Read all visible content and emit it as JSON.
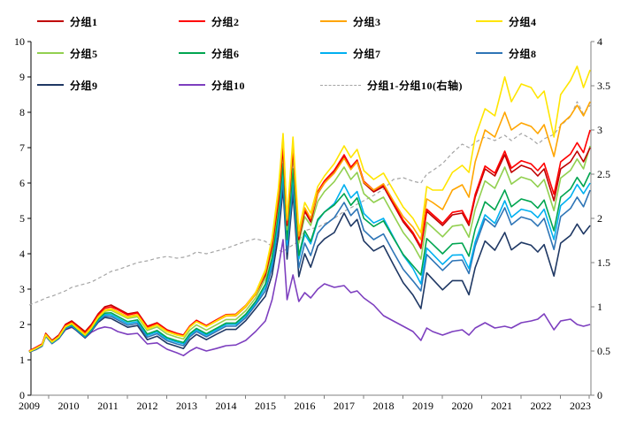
{
  "legend": {
    "items": [
      {
        "label": "分组1",
        "color": "#C00000",
        "dashed": false
      },
      {
        "label": "分组2",
        "color": "#FF0000",
        "dashed": false
      },
      {
        "label": "分组3",
        "color": "#FFA500",
        "dashed": false
      },
      {
        "label": "分组4",
        "color": "#FFE500",
        "dashed": false
      },
      {
        "label": "分组5",
        "color": "#92D050",
        "dashed": false
      },
      {
        "label": "分组6",
        "color": "#00A550",
        "dashed": false
      },
      {
        "label": "分组7",
        "color": "#00B0F0",
        "dashed": false
      },
      {
        "label": "分组8",
        "color": "#2E75B6",
        "dashed": false
      },
      {
        "label": "分组9",
        "color": "#1F3864",
        "dashed": false
      },
      {
        "label": "分组10",
        "color": "#7D3FBF",
        "dashed": false
      },
      {
        "label": "分组1-分组10(右轴)",
        "color": "#A5A5A5",
        "dashed": true
      }
    ]
  },
  "chart_data": {
    "type": "line",
    "title": "",
    "xlabel": "",
    "ylabel": "",
    "grid": false,
    "legend_position": "top",
    "left_axis": {
      "min": 0,
      "max": 10,
      "ticks": [
        0,
        1,
        2,
        3,
        4,
        5,
        6,
        7,
        8,
        9,
        10
      ]
    },
    "right_axis": {
      "min": 0,
      "max": 4,
      "ticks": [
        0,
        0.5,
        1,
        1.5,
        2,
        2.5,
        3,
        3.5,
        4
      ]
    },
    "x_axis": {
      "ticks": [
        2009,
        2010,
        2011,
        2012,
        2013,
        2014,
        2015,
        2016,
        2017,
        2018,
        2019,
        2020,
        2021,
        2022,
        2023
      ]
    },
    "x": [
      2009.0,
      2009.17,
      2009.33,
      2009.42,
      2009.58,
      2009.75,
      2009.92,
      2010.08,
      2010.25,
      2010.42,
      2010.58,
      2010.75,
      2010.92,
      2011.08,
      2011.25,
      2011.5,
      2011.75,
      2012.0,
      2012.25,
      2012.5,
      2012.75,
      2012.92,
      2013.08,
      2013.25,
      2013.5,
      2013.75,
      2014.0,
      2014.25,
      2014.5,
      2014.75,
      2015.0,
      2015.17,
      2015.33,
      2015.45,
      2015.55,
      2015.7,
      2015.85,
      2016.0,
      2016.15,
      2016.33,
      2016.5,
      2016.75,
      2017.0,
      2017.17,
      2017.33,
      2017.5,
      2017.75,
      2018.0,
      2018.25,
      2018.5,
      2018.75,
      2018.95,
      2019.1,
      2019.25,
      2019.5,
      2019.75,
      2020.0,
      2020.17,
      2020.33,
      2020.58,
      2020.83,
      2021.08,
      2021.25,
      2021.5,
      2021.75,
      2021.92,
      2022.08,
      2022.33,
      2022.5,
      2022.75,
      2022.92,
      2023.08,
      2023.25
    ],
    "series": [
      {
        "name": "分组1",
        "color": "#C00000",
        "axis": "left",
        "dashed": false,
        "values": [
          1.25,
          1.35,
          1.45,
          1.75,
          1.55,
          1.7,
          2.0,
          2.1,
          1.95,
          1.8,
          2.0,
          2.3,
          2.5,
          2.55,
          2.45,
          2.3,
          2.35,
          1.95,
          2.05,
          1.85,
          1.75,
          1.7,
          1.95,
          2.1,
          1.95,
          2.1,
          2.25,
          2.25,
          2.5,
          2.85,
          3.4,
          4.2,
          5.5,
          7.0,
          4.8,
          6.95,
          4.4,
          5.2,
          4.9,
          5.7,
          6.0,
          6.3,
          6.75,
          6.4,
          6.6,
          6.0,
          5.75,
          5.9,
          5.4,
          4.9,
          4.55,
          4.15,
          5.2,
          5.05,
          4.8,
          5.1,
          5.15,
          4.8,
          5.6,
          6.4,
          6.2,
          6.8,
          6.3,
          6.5,
          6.4,
          6.2,
          6.4,
          5.5,
          6.4,
          6.6,
          6.9,
          6.6,
          7.0
        ]
      },
      {
        "name": "分组2",
        "color": "#FF0000",
        "axis": "left",
        "dashed": false,
        "values": [
          1.25,
          1.35,
          1.45,
          1.73,
          1.53,
          1.68,
          1.98,
          2.07,
          1.92,
          1.77,
          1.97,
          2.27,
          2.46,
          2.5,
          2.42,
          2.27,
          2.33,
          1.93,
          2.04,
          1.84,
          1.75,
          1.7,
          1.96,
          2.12,
          1.97,
          2.13,
          2.28,
          2.29,
          2.54,
          2.9,
          3.46,
          4.27,
          5.58,
          7.1,
          4.87,
          7.03,
          4.46,
          5.26,
          4.96,
          5.76,
          6.06,
          6.36,
          6.8,
          6.45,
          6.65,
          6.05,
          5.8,
          5.95,
          5.45,
          4.95,
          4.6,
          4.2,
          5.26,
          5.11,
          4.86,
          5.17,
          5.22,
          4.87,
          5.68,
          6.48,
          6.28,
          6.9,
          6.42,
          6.63,
          6.54,
          6.35,
          6.56,
          5.68,
          6.6,
          6.82,
          7.14,
          6.86,
          7.5
        ]
      },
      {
        "name": "分组3",
        "color": "#FFA500",
        "axis": "left",
        "dashed": false,
        "values": [
          1.24,
          1.33,
          1.43,
          1.72,
          1.52,
          1.66,
          1.95,
          2.04,
          1.89,
          1.73,
          1.93,
          2.22,
          2.41,
          2.45,
          2.36,
          2.22,
          2.28,
          1.89,
          2.0,
          1.81,
          1.72,
          1.67,
          1.93,
          2.08,
          1.94,
          2.09,
          2.24,
          2.25,
          2.5,
          2.85,
          3.48,
          4.35,
          5.7,
          7.3,
          4.95,
          7.15,
          4.5,
          5.3,
          5.0,
          5.72,
          6.0,
          6.28,
          6.7,
          6.38,
          6.6,
          6.02,
          5.8,
          5.98,
          5.5,
          5.05,
          4.75,
          4.4,
          5.55,
          5.45,
          5.25,
          5.8,
          5.95,
          5.6,
          6.6,
          7.5,
          7.3,
          8.0,
          7.5,
          7.7,
          7.6,
          7.4,
          7.65,
          6.75,
          7.65,
          7.9,
          8.2,
          7.9,
          8.3
        ]
      },
      {
        "name": "分组4",
        "color": "#FFE500",
        "axis": "left",
        "dashed": false,
        "values": [
          1.23,
          1.32,
          1.42,
          1.7,
          1.5,
          1.64,
          1.93,
          2.02,
          1.86,
          1.7,
          1.9,
          2.2,
          2.39,
          2.43,
          2.34,
          2.2,
          2.26,
          1.87,
          1.98,
          1.79,
          1.7,
          1.66,
          1.92,
          2.08,
          1.94,
          2.1,
          2.26,
          2.27,
          2.53,
          2.9,
          3.55,
          4.45,
          5.85,
          7.4,
          5.0,
          7.3,
          4.65,
          5.45,
          5.15,
          5.9,
          6.2,
          6.55,
          7.05,
          6.72,
          6.95,
          6.35,
          6.1,
          6.28,
          5.8,
          5.32,
          5.0,
          4.6,
          5.9,
          5.8,
          5.8,
          6.3,
          6.5,
          6.3,
          7.3,
          8.1,
          7.9,
          9.0,
          8.3,
          8.8,
          8.7,
          8.4,
          8.6,
          7.3,
          8.5,
          8.9,
          9.3,
          8.7,
          9.2
        ]
      },
      {
        "name": "分组5",
        "color": "#92D050",
        "axis": "left",
        "dashed": false,
        "values": [
          1.24,
          1.33,
          1.43,
          1.71,
          1.51,
          1.65,
          1.94,
          2.03,
          1.87,
          1.71,
          1.91,
          2.19,
          2.37,
          2.4,
          2.31,
          2.17,
          2.22,
          1.83,
          1.93,
          1.73,
          1.64,
          1.59,
          1.84,
          1.99,
          1.84,
          1.99,
          2.14,
          2.14,
          2.39,
          2.75,
          3.3,
          4.1,
          5.4,
          6.9,
          4.68,
          6.8,
          4.3,
          5.05,
          4.8,
          5.48,
          5.76,
          6.04,
          6.45,
          6.1,
          6.3,
          5.7,
          5.45,
          5.6,
          5.1,
          4.6,
          4.25,
          3.85,
          4.89,
          4.74,
          4.48,
          4.78,
          4.82,
          4.47,
          5.26,
          6.06,
          5.85,
          6.45,
          5.97,
          6.17,
          6.08,
          5.89,
          6.1,
          5.22,
          6.14,
          6.36,
          6.68,
          6.4,
          7.05
        ]
      },
      {
        "name": "分组6",
        "color": "#00A550",
        "axis": "left",
        "dashed": false,
        "values": [
          1.23,
          1.32,
          1.42,
          1.7,
          1.5,
          1.63,
          1.92,
          2.0,
          1.84,
          1.68,
          1.87,
          2.15,
          2.32,
          2.33,
          2.23,
          2.08,
          2.13,
          1.73,
          1.83,
          1.63,
          1.54,
          1.49,
          1.74,
          1.89,
          1.74,
          1.89,
          2.04,
          2.04,
          2.29,
          2.65,
          3.14,
          3.89,
          5.14,
          6.55,
          4.4,
          6.4,
          3.95,
          4.65,
          4.35,
          4.97,
          5.18,
          5.38,
          5.7,
          5.37,
          5.58,
          5.0,
          4.77,
          4.93,
          4.45,
          3.98,
          3.66,
          3.4,
          4.43,
          4.27,
          4.0,
          4.28,
          4.3,
          3.93,
          4.7,
          5.47,
          5.24,
          5.8,
          5.33,
          5.55,
          5.47,
          5.29,
          5.52,
          4.65,
          5.6,
          5.83,
          6.16,
          5.9,
          6.3
        ]
      },
      {
        "name": "分组7",
        "color": "#00B0F0",
        "axis": "left",
        "dashed": false,
        "values": [
          1.23,
          1.31,
          1.41,
          1.69,
          1.48,
          1.62,
          1.9,
          1.98,
          1.82,
          1.66,
          1.85,
          2.12,
          2.28,
          2.28,
          2.18,
          2.03,
          2.08,
          1.69,
          1.79,
          1.59,
          1.5,
          1.45,
          1.7,
          1.85,
          1.7,
          1.85,
          2.0,
          2.0,
          2.25,
          2.6,
          3.05,
          3.75,
          4.95,
          6.35,
          4.25,
          6.25,
          3.85,
          4.55,
          4.28,
          4.93,
          5.18,
          5.42,
          5.95,
          5.58,
          5.76,
          5.14,
          4.87,
          5.0,
          4.48,
          3.96,
          3.58,
          3.15,
          4.16,
          3.99,
          3.7,
          3.96,
          3.97,
          3.58,
          4.34,
          5.1,
          4.86,
          5.5,
          5.03,
          5.26,
          5.19,
          5.02,
          5.26,
          4.4,
          5.36,
          5.61,
          5.96,
          5.7,
          6.0
        ]
      },
      {
        "name": "分组8",
        "color": "#2E75B6",
        "axis": "left",
        "dashed": false,
        "values": [
          1.22,
          1.3,
          1.4,
          1.68,
          1.47,
          1.61,
          1.88,
          1.96,
          1.8,
          1.64,
          1.83,
          2.09,
          2.24,
          2.23,
          2.13,
          1.98,
          2.03,
          1.64,
          1.74,
          1.54,
          1.45,
          1.4,
          1.65,
          1.8,
          1.65,
          1.8,
          1.95,
          1.95,
          2.19,
          2.55,
          2.95,
          3.6,
          4.75,
          6.1,
          4.05,
          5.95,
          3.6,
          4.3,
          3.95,
          4.58,
          4.8,
          5.02,
          5.45,
          5.08,
          5.27,
          4.66,
          4.4,
          4.56,
          4.05,
          3.56,
          3.23,
          2.95,
          3.98,
          3.81,
          3.53,
          3.8,
          3.82,
          3.44,
          4.22,
          4.99,
          4.76,
          5.3,
          4.82,
          5.04,
          4.96,
          4.78,
          5.0,
          4.12,
          5.05,
          5.28,
          5.6,
          5.33,
          5.8
        ]
      },
      {
        "name": "分组9",
        "color": "#1F3864",
        "axis": "left",
        "dashed": false,
        "values": [
          1.22,
          1.29,
          1.39,
          1.67,
          1.46,
          1.6,
          1.86,
          1.94,
          1.78,
          1.62,
          1.81,
          2.06,
          2.2,
          2.17,
          2.07,
          1.92,
          1.97,
          1.57,
          1.67,
          1.47,
          1.38,
          1.32,
          1.57,
          1.72,
          1.57,
          1.72,
          1.86,
          1.86,
          2.11,
          2.45,
          2.8,
          3.4,
          4.5,
          5.85,
          3.85,
          5.7,
          3.35,
          4.0,
          3.62,
          4.22,
          4.42,
          4.6,
          5.15,
          4.78,
          4.97,
          4.36,
          4.08,
          4.23,
          3.7,
          3.18,
          2.83,
          2.45,
          3.46,
          3.28,
          2.98,
          3.24,
          3.24,
          2.84,
          3.61,
          4.36,
          4.1,
          4.6,
          4.11,
          4.32,
          4.24,
          4.05,
          4.26,
          3.37,
          4.3,
          4.52,
          4.84,
          4.56,
          4.8
        ]
      },
      {
        "name": "分组10",
        "color": "#7D3FBF",
        "axis": "left",
        "dashed": false,
        "values": [
          1.22,
          1.3,
          1.4,
          1.68,
          1.48,
          1.6,
          1.85,
          1.92,
          1.8,
          1.62,
          1.78,
          1.88,
          1.93,
          1.9,
          1.8,
          1.72,
          1.75,
          1.45,
          1.48,
          1.3,
          1.2,
          1.12,
          1.25,
          1.35,
          1.25,
          1.32,
          1.4,
          1.42,
          1.55,
          1.8,
          2.1,
          2.7,
          3.6,
          4.4,
          2.7,
          3.4,
          2.65,
          2.9,
          2.75,
          3.0,
          3.15,
          3.05,
          3.1,
          2.9,
          2.95,
          2.75,
          2.55,
          2.25,
          2.1,
          1.95,
          1.8,
          1.55,
          1.9,
          1.8,
          1.7,
          1.8,
          1.85,
          1.7,
          1.9,
          2.05,
          1.9,
          1.95,
          1.9,
          2.05,
          2.1,
          2.15,
          2.3,
          1.85,
          2.1,
          2.15,
          2.0,
          1.95,
          2.0
        ]
      },
      {
        "name": "分组1-分组10(右轴)",
        "color": "#A5A5A5",
        "axis": "right",
        "dashed": true,
        "values": [
          1.02,
          1.05,
          1.08,
          1.1,
          1.12,
          1.15,
          1.18,
          1.22,
          1.24,
          1.26,
          1.28,
          1.32,
          1.36,
          1.4,
          1.42,
          1.46,
          1.5,
          1.52,
          1.55,
          1.57,
          1.55,
          1.56,
          1.58,
          1.62,
          1.6,
          1.63,
          1.66,
          1.7,
          1.74,
          1.77,
          1.74,
          1.68,
          1.64,
          1.62,
          1.66,
          1.7,
          1.74,
          1.86,
          1.88,
          1.9,
          1.94,
          2.0,
          2.08,
          2.12,
          2.16,
          2.2,
          2.26,
          2.33,
          2.44,
          2.46,
          2.42,
          2.4,
          2.5,
          2.54,
          2.62,
          2.74,
          2.84,
          2.8,
          2.86,
          2.92,
          2.88,
          2.94,
          2.88,
          2.96,
          2.9,
          2.84,
          2.9,
          2.95,
          3.05,
          3.15,
          3.32,
          3.18,
          3.28
        ]
      }
    ]
  }
}
